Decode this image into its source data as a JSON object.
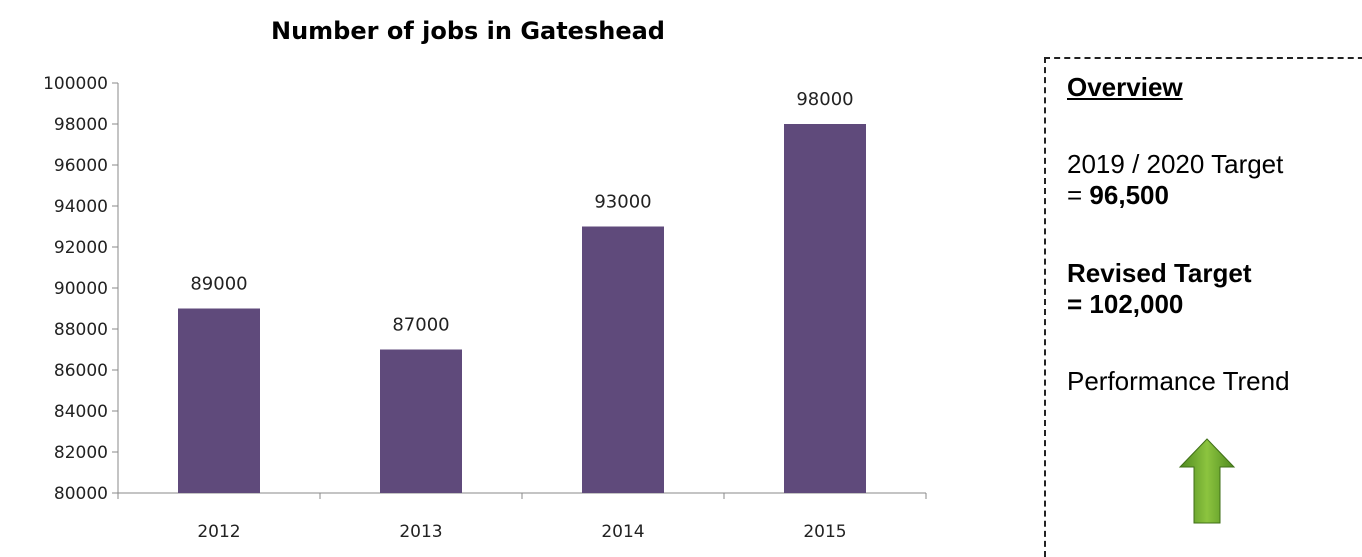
{
  "chart_data": {
    "type": "bar",
    "title": "Number of jobs in Gateshead",
    "categories": [
      "2012",
      "2013",
      "2014",
      "2015"
    ],
    "values": [
      89000,
      87000,
      93000,
      98000
    ],
    "ylim": [
      80000,
      100000
    ],
    "yticks": [
      80000,
      82000,
      84000,
      86000,
      88000,
      90000,
      92000,
      94000,
      96000,
      98000,
      100000
    ],
    "xlabel": "",
    "ylabel": "",
    "grid": false,
    "bar_color": "#5f4a7b"
  },
  "overview": {
    "heading": "Overview",
    "target_prefix": "2019 / 2020 Target",
    "target_eq": "= ",
    "target_value": "96,500",
    "revised_line1": "Revised Target",
    "revised_line2": "= 102,000",
    "trend_label": "Performance Trend",
    "trend_icon": "up-arrow-icon",
    "trend_color": "#6aa030"
  }
}
